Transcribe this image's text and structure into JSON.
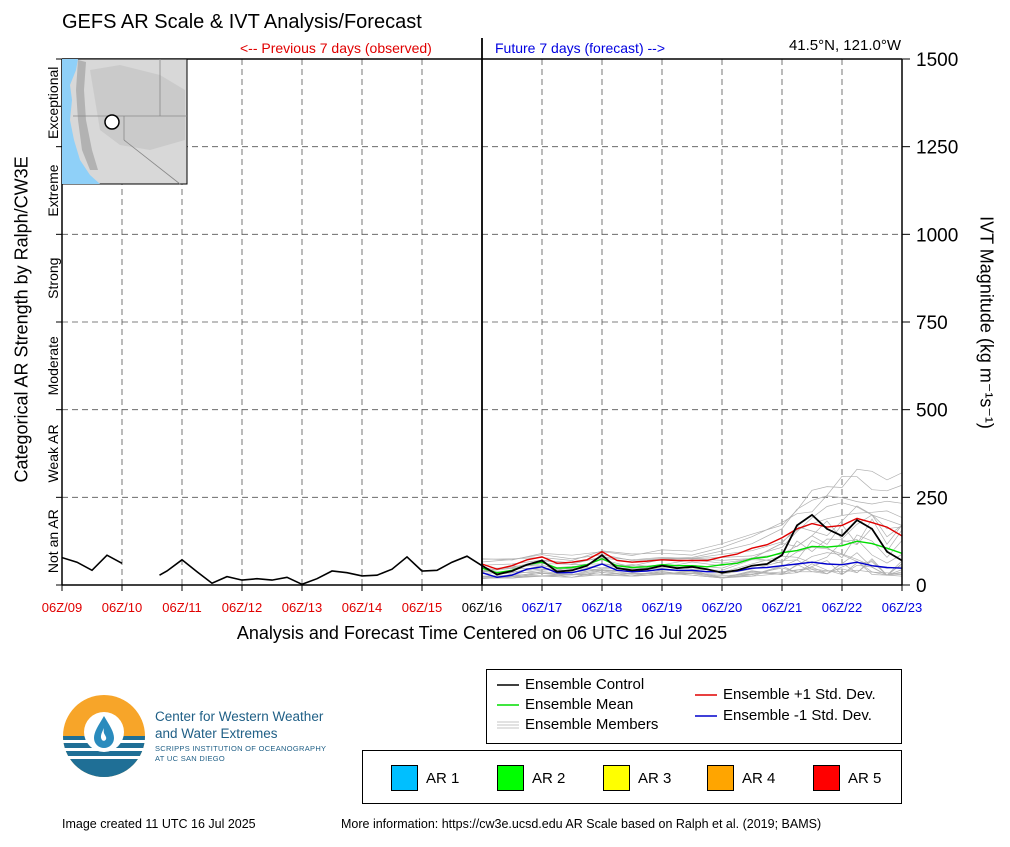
{
  "header": {
    "title": "GEFS AR Scale & IVT Analysis/Forecast",
    "location": "41.5°N, 121.0°W",
    "previous_label": "<-- Previous 7 days (observed)",
    "future_label": "Future 7 days (forecast) -->"
  },
  "axes": {
    "x_title": "Analysis and Forecast Time Centered on 06 UTC 16 Jul 2025",
    "y_left_title": "Categorical AR Strength by Ralph/CW3E",
    "y_right_title": "IVT Magnitude (kg m⁻¹s⁻¹)",
    "ar_categories": [
      "Not an AR",
      "Weak AR",
      "Moderate",
      "Strong",
      "Extreme",
      "Exceptional"
    ]
  },
  "colors": {
    "observed": "#e00000",
    "forecast": "#0000e0",
    "control": "#000000",
    "mean": "#00dd00",
    "plus_std": "#e00000",
    "minus_std": "#0000cc",
    "members": "#b0b0b0"
  },
  "chart_data": {
    "type": "line",
    "title": "GEFS AR Scale & IVT Analysis/Forecast",
    "xlabel": "Analysis and Forecast Time Centered on 06 UTC 16 Jul 2025",
    "ylabel": "IVT Magnitude (kg m⁻¹s⁻¹)",
    "x_unit": "days since 06Z/09 Jul 2025",
    "ylim": [
      0,
      1500
    ],
    "yticks": [
      0,
      250,
      500,
      750,
      1000,
      1250,
      1500
    ],
    "xticks": [
      {
        "label": "06Z/09",
        "period": "observed"
      },
      {
        "label": "06Z/10",
        "period": "observed"
      },
      {
        "label": "06Z/11",
        "period": "observed"
      },
      {
        "label": "06Z/12",
        "period": "observed"
      },
      {
        "label": "06Z/13",
        "period": "observed"
      },
      {
        "label": "06Z/14",
        "period": "observed"
      },
      {
        "label": "06Z/15",
        "period": "observed"
      },
      {
        "label": "06Z/16",
        "period": "current"
      },
      {
        "label": "06Z/17",
        "period": "forecast"
      },
      {
        "label": "06Z/18",
        "period": "forecast"
      },
      {
        "label": "06Z/19",
        "period": "forecast"
      },
      {
        "label": "06Z/20",
        "period": "forecast"
      },
      {
        "label": "06Z/21",
        "period": "forecast"
      },
      {
        "label": "06Z/22",
        "period": "forecast"
      },
      {
        "label": "06Z/23",
        "period": "forecast"
      }
    ],
    "grid": true,
    "observed": {
      "name": "Observed (analysis)",
      "segments": [
        {
          "x": [
            0,
            0.25,
            0.5,
            0.75,
            1.0
          ],
          "y": [
            78,
            65,
            42,
            85,
            62
          ]
        },
        {
          "x": [
            1.625,
            1.75,
            2.0,
            2.25,
            2.5,
            2.75,
            3.0,
            3.25,
            3.5,
            3.75,
            4.0,
            4.25,
            4.5,
            4.75,
            5.0,
            5.25,
            5.5,
            5.75,
            6.0,
            6.25,
            6.5,
            6.75,
            7.0
          ],
          "y": [
            28,
            40,
            72,
            38,
            5,
            24,
            14,
            18,
            14,
            22,
            2,
            18,
            40,
            35,
            26,
            28,
            45,
            80,
            40,
            42,
            65,
            82,
            55
          ]
        }
      ]
    },
    "series": [
      {
        "name": "Ensemble Control",
        "x": [
          7.0,
          7.25,
          7.5,
          7.75,
          8.0,
          8.25,
          8.5,
          8.75,
          9.0,
          9.25,
          9.5,
          9.75,
          10.0,
          10.25,
          10.5,
          10.75,
          11.0,
          11.25,
          11.5,
          11.75,
          12.0,
          12.25,
          12.5,
          12.75,
          13.0,
          13.25,
          13.5,
          13.75,
          14.0
        ],
        "y": [
          55,
          30,
          40,
          58,
          70,
          38,
          42,
          55,
          85,
          48,
          42,
          45,
          55,
          48,
          52,
          45,
          35,
          42,
          55,
          60,
          85,
          170,
          200,
          160,
          140,
          185,
          160,
          95,
          70
        ]
      },
      {
        "name": "Ensemble Mean",
        "x": [
          7.0,
          7.25,
          7.5,
          7.75,
          8.0,
          8.25,
          8.5,
          8.75,
          9.0,
          9.25,
          9.5,
          9.75,
          10.0,
          10.25,
          10.5,
          10.75,
          11.0,
          11.25,
          11.5,
          11.75,
          12.0,
          12.25,
          12.5,
          12.75,
          13.0,
          13.25,
          13.5,
          13.75,
          14.0
        ],
        "y": [
          48,
          35,
          42,
          58,
          65,
          48,
          50,
          58,
          75,
          55,
          50,
          52,
          58,
          55,
          55,
          52,
          58,
          62,
          75,
          80,
          92,
          98,
          110,
          108,
          112,
          125,
          118,
          105,
          90
        ]
      },
      {
        "name": "Ensemble +1 Std. Dev.",
        "x": [
          7.0,
          7.25,
          7.5,
          7.75,
          8.0,
          8.25,
          8.5,
          8.75,
          9.0,
          9.25,
          9.5,
          9.75,
          10.0,
          10.25,
          10.5,
          10.75,
          11.0,
          11.25,
          11.5,
          11.75,
          12.0,
          12.25,
          12.5,
          12.75,
          13.0,
          13.25,
          13.5,
          13.75,
          14.0
        ],
        "y": [
          60,
          45,
          55,
          72,
          80,
          62,
          65,
          72,
          95,
          70,
          65,
          68,
          72,
          70,
          70,
          70,
          80,
          88,
          105,
          115,
          135,
          160,
          175,
          165,
          170,
          190,
          178,
          165,
          140
        ]
      },
      {
        "name": "Ensemble -1 Std. Dev.",
        "x": [
          7.0,
          7.25,
          7.5,
          7.75,
          8.0,
          8.25,
          8.5,
          8.75,
          9.0,
          9.25,
          9.5,
          9.75,
          10.0,
          10.25,
          10.5,
          10.75,
          11.0,
          11.25,
          11.5,
          11.75,
          12.0,
          12.25,
          12.5,
          12.75,
          13.0,
          13.25,
          13.5,
          13.75,
          14.0
        ],
        "y": [
          35,
          22,
          28,
          45,
          52,
          35,
          35,
          45,
          60,
          42,
          38,
          40,
          45,
          42,
          42,
          38,
          38,
          40,
          48,
          50,
          55,
          60,
          65,
          60,
          58,
          65,
          55,
          50,
          48
        ]
      }
    ],
    "members_envelope": {
      "name": "Ensemble Members",
      "x": [
        7.0,
        7.5,
        8.0,
        8.5,
        9.0,
        9.5,
        10.0,
        10.5,
        11.0,
        11.5,
        12.0,
        12.25,
        12.5,
        12.75,
        13.0,
        13.25,
        13.5,
        13.75,
        14.0
      ],
      "low": [
        18,
        20,
        25,
        22,
        28,
        25,
        30,
        28,
        20,
        25,
        30,
        35,
        38,
        32,
        30,
        35,
        30,
        28,
        25
      ],
      "high": [
        75,
        80,
        95,
        85,
        105,
        90,
        100,
        105,
        130,
        145,
        185,
        240,
        270,
        300,
        320,
        330,
        340,
        350,
        320
      ]
    },
    "legend_placement": "bottom-right, below plot"
  },
  "map_inset": {
    "marker_label": "41.5°N, 121.0°W"
  },
  "legend": {
    "items": [
      {
        "label": "Ensemble Control"
      },
      {
        "label": "Ensemble Mean"
      },
      {
        "label": "Ensemble Members"
      },
      {
        "label": "Ensemble +1 Std. Dev."
      },
      {
        "label": "Ensemble -1 Std. Dev."
      }
    ]
  },
  "ar_scale": [
    {
      "label": "AR 1",
      "color": "#00bfff"
    },
    {
      "label": "AR 2",
      "color": "#00ff00"
    },
    {
      "label": "AR 3",
      "color": "#ffff00"
    },
    {
      "label": "AR 4",
      "color": "#ffa500"
    },
    {
      "label": "AR 5",
      "color": "#ff0000"
    }
  ],
  "logo": {
    "name_line1": "Center for Western Weather",
    "name_line2": "and Water Extremes",
    "sub_line1": "SCRIPPS INSTITUTION OF OCEANOGRAPHY",
    "sub_line2": "AT UC SAN DIEGO"
  },
  "footer": {
    "created": "Image created 11 UTC 16 Jul 2025",
    "info": "More information: https://cw3e.ucsd.edu AR Scale based on Ralph et al. (2019; BAMS)"
  }
}
